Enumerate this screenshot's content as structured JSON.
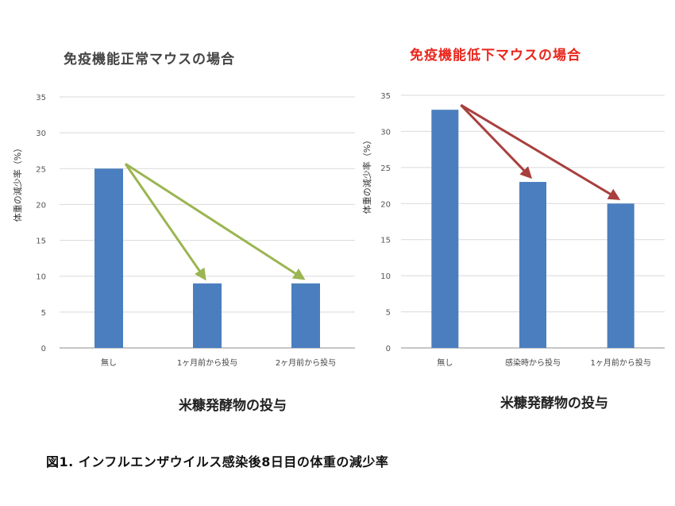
{
  "chart_data": [
    {
      "type": "bar",
      "title": "免疫機能正常マウスの場合",
      "title_color": "#444444",
      "categories": [
        "無し",
        "1ヶ月前から投与",
        "2ヶ月前から投与"
      ],
      "values": [
        25,
        9,
        9
      ],
      "xlabel": "米糠発酵物の投与",
      "ylabel": "体重の減少率（%）",
      "ylim": [
        0,
        35
      ],
      "yticks": [
        0,
        5,
        10,
        15,
        20,
        25,
        30,
        35
      ],
      "grid": true,
      "bar_color": "#4a7ebf",
      "arrow_color": "#9bb552",
      "arrows": [
        [
          0,
          1
        ],
        [
          0,
          2
        ]
      ]
    },
    {
      "type": "bar",
      "title": "免疫機能低下マウスの場合",
      "title_color": "#e8261c",
      "categories": [
        "無し",
        "感染時から投与",
        "1ヶ月前から投与"
      ],
      "values": [
        33,
        23,
        20
      ],
      "xlabel": "米糠発酵物の投与",
      "ylabel": "体重の減少率（%）",
      "ylim": [
        0,
        35
      ],
      "yticks": [
        0,
        5,
        10,
        15,
        20,
        25,
        30,
        35
      ],
      "grid": true,
      "bar_color": "#4a7ebf",
      "arrow_color": "#a8403e",
      "arrows": [
        [
          0,
          1
        ],
        [
          0,
          2
        ]
      ]
    }
  ],
  "caption": "図1. インフルエンザウイルス感染後8日目の体重の減少率"
}
